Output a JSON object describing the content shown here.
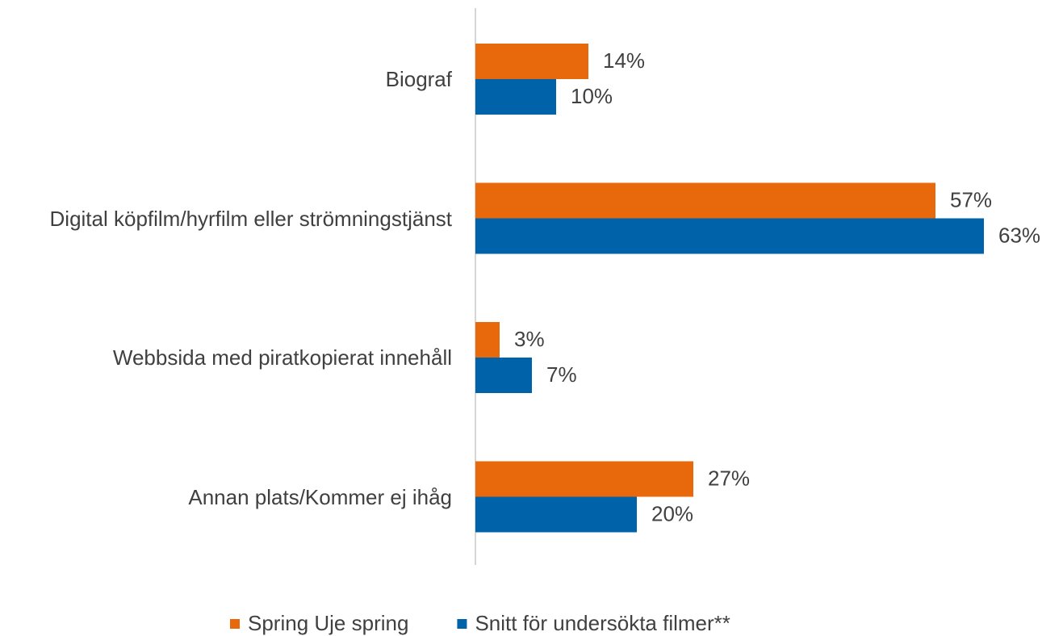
{
  "chart_data": {
    "type": "hbar",
    "categories": [
      "Biograf",
      "Digital köpfilm/hyrfilm eller strömningstjänst",
      "Webbsida med piratkopierat innehåll",
      "Annan plats/Kommer ej ihåg"
    ],
    "series": [
      {
        "name": "Spring Uje spring",
        "color": "#e8680c",
        "values": [
          14,
          57,
          3,
          27
        ],
        "value_labels": [
          "14%",
          "57%",
          "3%",
          "27%"
        ]
      },
      {
        "name": "Snitt för undersökta filmer**",
        "color": "#0062a8",
        "values": [
          10,
          63,
          7,
          20
        ],
        "value_labels": [
          "10%",
          "63%",
          "7%",
          "20%"
        ]
      }
    ],
    "legend": "bottom"
  }
}
